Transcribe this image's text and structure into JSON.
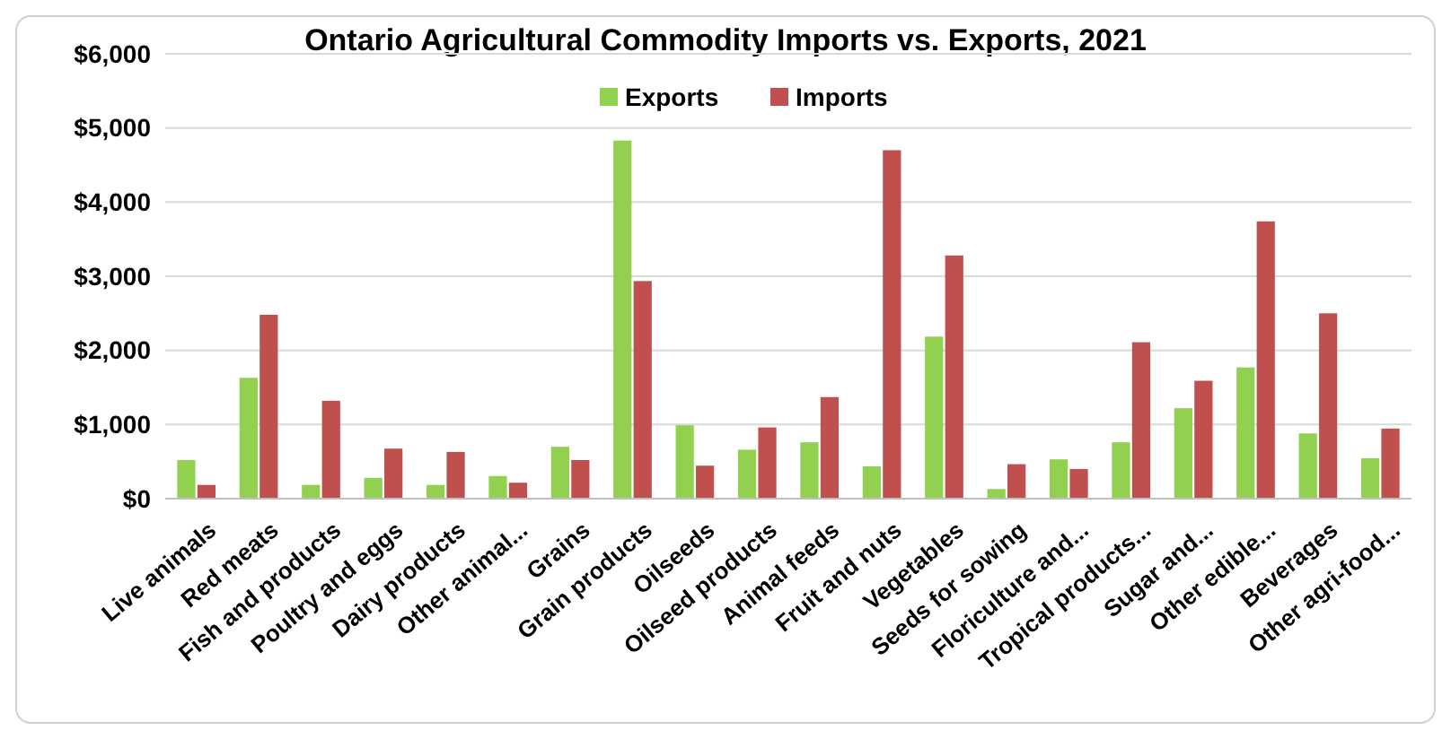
{
  "chart_data": {
    "type": "bar",
    "title": "Ontario Agricultural Commodity Imports vs. Exports, 2021",
    "categories": [
      "Live animals",
      "Red meats",
      "Fish and products",
      "Poultry and eggs",
      "Dairy products",
      "Other animal...",
      "Grains",
      "Grain products",
      "Oilseeds",
      "Oilseed products",
      "Animal feeds",
      "Fruit and nuts",
      "Vegetables",
      "Seeds for sowing",
      "Floriculture and...",
      "Tropical products...",
      "Sugar and...",
      "Other edible...",
      "Beverages",
      "Other agri-food..."
    ],
    "series": [
      {
        "name": "Exports",
        "color": "#92d050",
        "values": [
          520,
          1630,
          185,
          280,
          185,
          305,
          700,
          4830,
          990,
          660,
          760,
          435,
          2185,
          130,
          530,
          760,
          1220,
          1770,
          880,
          545
        ]
      },
      {
        "name": "Imports",
        "color": "#c0504d",
        "values": [
          185,
          2480,
          1320,
          675,
          630,
          215,
          520,
          2935,
          445,
          960,
          1370,
          4700,
          3280,
          465,
          400,
          2110,
          1590,
          3740,
          2500,
          945
        ]
      }
    ],
    "ylim": [
      0,
      6000
    ],
    "yticks": [
      {
        "value": 0,
        "label": "$0"
      },
      {
        "value": 1000,
        "label": "$1,000"
      },
      {
        "value": 2000,
        "label": "$2,000"
      },
      {
        "value": 3000,
        "label": "$3,000"
      },
      {
        "value": 4000,
        "label": "$4,000"
      },
      {
        "value": 5000,
        "label": "$5,000"
      },
      {
        "value": 6000,
        "label": "$6,000"
      }
    ],
    "grid": "y",
    "legend": "top"
  }
}
